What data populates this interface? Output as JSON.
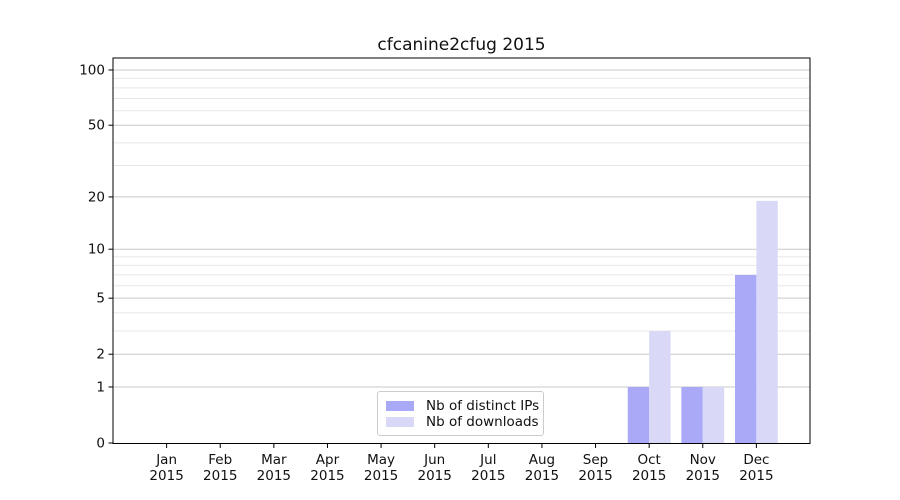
{
  "title": "cfcanine2cfug 2015",
  "chart_data": {
    "type": "bar",
    "title": "cfcanine2cfug 2015",
    "scale": "log1p",
    "categories": [
      "Jan",
      "Feb",
      "Mar",
      "Apr",
      "May",
      "Jun",
      "Jul",
      "Aug",
      "Sep",
      "Oct",
      "Nov",
      "Dec"
    ],
    "category_year": "2015",
    "series": [
      {
        "name": "Nb of distinct IPs",
        "color": "#a9a9f7",
        "values": [
          0,
          0,
          0,
          0,
          0,
          0,
          0,
          0,
          0,
          1,
          1,
          7
        ]
      },
      {
        "name": "Nb of downloads",
        "color": "#d9d9f7",
        "values": [
          0,
          0,
          0,
          0,
          0,
          0,
          0,
          0,
          0,
          3,
          1,
          19
        ]
      }
    ],
    "xlabel": "",
    "ylabel": "",
    "ylim": [
      0,
      100
    ],
    "yticks": [
      "0",
      "1",
      "2",
      "5",
      "10",
      "20",
      "50",
      "100"
    ],
    "minor_yticks": [
      3,
      4,
      6,
      7,
      8,
      9,
      30,
      40,
      60,
      70,
      80,
      90
    ],
    "grid": "horizontal",
    "legend_position": "lower-center",
    "colors": {
      "axis": "#000000",
      "text": "#111111",
      "major_grid": "#c9c9c9",
      "minor_grid": "#e8e8e8",
      "background": "#ffffff",
      "legend_border": "#cccccc"
    }
  }
}
